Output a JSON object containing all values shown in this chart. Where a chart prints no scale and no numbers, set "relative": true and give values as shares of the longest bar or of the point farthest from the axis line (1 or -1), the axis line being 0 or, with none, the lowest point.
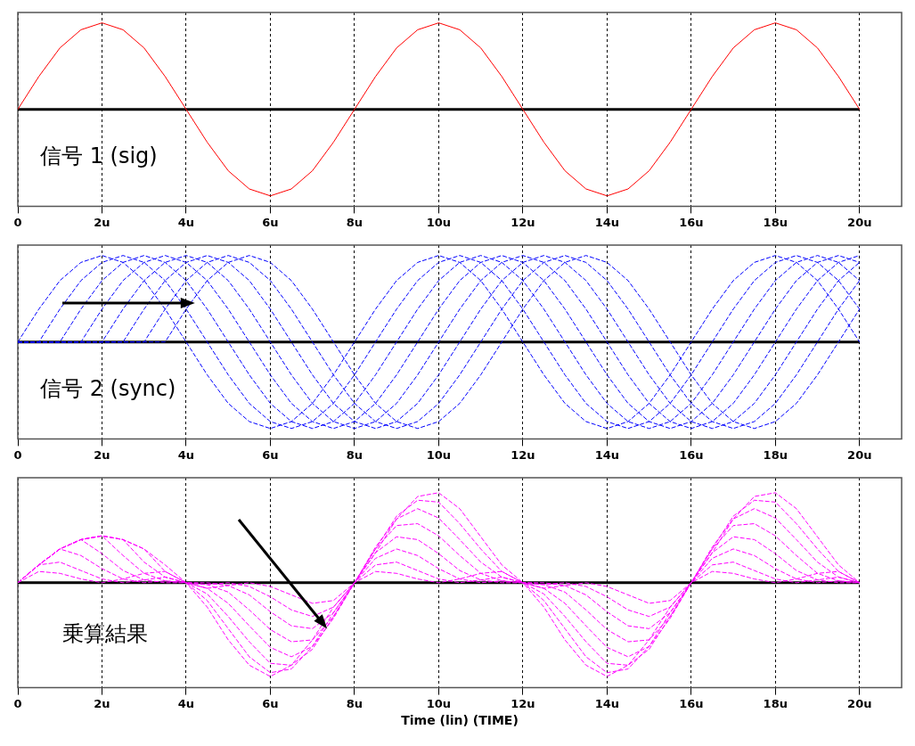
{
  "chart_data": [
    {
      "type": "line",
      "relative": true,
      "grid": "x",
      "legend": false,
      "marker": "none",
      "line_style": "solid",
      "x": [
        0,
        0.5,
        1,
        1.5,
        2,
        2.5,
        3,
        3.5,
        4,
        4.5,
        5,
        5.5,
        6,
        6.5,
        7,
        7.5,
        8,
        8.5,
        9,
        9.5,
        10,
        10.5,
        11,
        11.5,
        12,
        12.5,
        13,
        13.5,
        14,
        14.5,
        15,
        15.5,
        16,
        16.5,
        17,
        17.5,
        18,
        18.5,
        19,
        19.5,
        20
      ],
      "xlim": [
        0,
        21
      ],
      "xticks": [
        {
          "value": 0,
          "label": "0"
        },
        {
          "value": 2,
          "label": "2u"
        },
        {
          "value": 4,
          "label": "4u"
        },
        {
          "value": 6,
          "label": "6u"
        },
        {
          "value": 8,
          "label": "8u"
        },
        {
          "value": 10,
          "label": "10u"
        },
        {
          "value": 12,
          "label": "12u"
        },
        {
          "value": 14,
          "label": "14u"
        },
        {
          "value": 16,
          "label": "16u"
        },
        {
          "value": 18,
          "label": "18u"
        },
        {
          "value": 20,
          "label": "20u"
        }
      ],
      "annotations": [
        "信号 1 (sig)"
      ],
      "series": [
        {
          "color": "#ff0000",
          "values": [
            0,
            0.38,
            0.71,
            0.92,
            1,
            0.92,
            0.71,
            0.38,
            0,
            -0.38,
            -0.71,
            -0.92,
            -1,
            -0.92,
            -0.71,
            -0.38,
            0,
            0.38,
            0.71,
            0.92,
            1,
            0.92,
            0.71,
            0.38,
            0,
            -0.38,
            -0.71,
            -0.92,
            -1,
            -0.92,
            -0.71,
            -0.38,
            0,
            0.38,
            0.71,
            0.92,
            1,
            0.92,
            0.71,
            0.38,
            0
          ]
        }
      ]
    },
    {
      "type": "line",
      "relative": true,
      "grid": "x",
      "legend": false,
      "marker": "none",
      "line_style": "dashed",
      "x": [
        0,
        0.5,
        1,
        1.5,
        2,
        2.5,
        3,
        3.5,
        4,
        4.5,
        5,
        5.5,
        6,
        6.5,
        7,
        7.5,
        8,
        8.5,
        9,
        9.5,
        10,
        10.5,
        11,
        11.5,
        12,
        12.5,
        13,
        13.5,
        14,
        14.5,
        15,
        15.5,
        16,
        16.5,
        17,
        17.5,
        18,
        18.5,
        19,
        19.5,
        20
      ],
      "xlim": [
        0,
        21
      ],
      "xticks": [
        {
          "value": 0,
          "label": "0"
        },
        {
          "value": 2,
          "label": "2u"
        },
        {
          "value": 4,
          "label": "4u"
        },
        {
          "value": 6,
          "label": "6u"
        },
        {
          "value": 8,
          "label": "8u"
        },
        {
          "value": 10,
          "label": "10u"
        },
        {
          "value": 12,
          "label": "12u"
        },
        {
          "value": 14,
          "label": "14u"
        },
        {
          "value": 16,
          "label": "16u"
        },
        {
          "value": 18,
          "label": "18u"
        },
        {
          "value": 20,
          "label": "20u"
        }
      ],
      "annotations": [
        "信号 2 (sync)"
      ],
      "series": [
        {
          "color": "#0000ff",
          "values": [
            0,
            0.38,
            0.71,
            0.92,
            1,
            0.92,
            0.71,
            0.38,
            0,
            -0.38,
            -0.71,
            -0.92,
            -1,
            -0.92,
            -0.71,
            -0.38,
            0,
            0.38,
            0.71,
            0.92,
            1,
            0.92,
            0.71,
            0.38,
            0,
            -0.38,
            -0.71,
            -0.92,
            -1,
            -0.92,
            -0.71,
            -0.38,
            0,
            0.38,
            0.71,
            0.92,
            1,
            0.92,
            0.71,
            0.38,
            0
          ]
        },
        {
          "color": "#0000ff",
          "values": [
            0,
            0,
            0.38,
            0.71,
            0.92,
            1,
            0.92,
            0.71,
            0.38,
            0,
            -0.38,
            -0.71,
            -0.92,
            -1,
            -0.92,
            -0.71,
            -0.38,
            0,
            0.38,
            0.71,
            0.92,
            1,
            0.92,
            0.71,
            0.38,
            0,
            -0.38,
            -0.71,
            -0.92,
            -1,
            -0.92,
            -0.71,
            -0.38,
            0,
            0.38,
            0.71,
            0.92,
            1,
            0.92,
            0.71,
            0.38
          ]
        },
        {
          "color": "#0000ff",
          "values": [
            0,
            0,
            0,
            0.38,
            0.71,
            0.92,
            1,
            0.92,
            0.71,
            0.38,
            0,
            -0.38,
            -0.71,
            -0.92,
            -1,
            -0.92,
            -0.71,
            -0.38,
            0,
            0.38,
            0.71,
            0.92,
            1,
            0.92,
            0.71,
            0.38,
            0,
            -0.38,
            -0.71,
            -0.92,
            -1,
            -0.92,
            -0.71,
            -0.38,
            0,
            0.38,
            0.71,
            0.92,
            1,
            0.92,
            0.71
          ]
        },
        {
          "color": "#0000ff",
          "values": [
            0,
            0,
            0,
            0,
            0.38,
            0.71,
            0.92,
            1,
            0.92,
            0.71,
            0.38,
            0,
            -0.38,
            -0.71,
            -0.92,
            -1,
            -0.92,
            -0.71,
            -0.38,
            0,
            0.38,
            0.71,
            0.92,
            1,
            0.92,
            0.71,
            0.38,
            0,
            -0.38,
            -0.71,
            -0.92,
            -1,
            -0.92,
            -0.71,
            -0.38,
            0,
            0.38,
            0.71,
            0.92,
            1,
            0.92
          ]
        },
        {
          "color": "#0000ff",
          "values": [
            0,
            0,
            0,
            0,
            0,
            0.38,
            0.71,
            0.92,
            1,
            0.92,
            0.71,
            0.38,
            0,
            -0.38,
            -0.71,
            -0.92,
            -1,
            -0.92,
            -0.71,
            -0.38,
            0,
            0.38,
            0.71,
            0.92,
            1,
            0.92,
            0.71,
            0.38,
            0,
            -0.38,
            -0.71,
            -0.92,
            -1,
            -0.92,
            -0.71,
            -0.38,
            0,
            0.38,
            0.71,
            0.92,
            1
          ]
        },
        {
          "color": "#0000ff",
          "values": [
            0,
            0,
            0,
            0,
            0,
            0,
            0.38,
            0.71,
            0.92,
            1,
            0.92,
            0.71,
            0.38,
            0,
            -0.38,
            -0.71,
            -0.92,
            -1,
            -0.92,
            -0.71,
            -0.38,
            0,
            0.38,
            0.71,
            0.92,
            1,
            0.92,
            0.71,
            0.38,
            0,
            -0.38,
            -0.71,
            -0.92,
            -1,
            -0.92,
            -0.71,
            -0.38,
            0,
            0.38,
            0.71,
            0.92
          ]
        },
        {
          "color": "#0000ff",
          "values": [
            0,
            0,
            0,
            0,
            0,
            0,
            0,
            0.38,
            0.71,
            0.92,
            1,
            0.92,
            0.71,
            0.38,
            0,
            -0.38,
            -0.71,
            -0.92,
            -1,
            -0.92,
            -0.71,
            -0.38,
            0,
            0.38,
            0.71,
            0.92,
            1,
            0.92,
            0.71,
            0.38,
            0,
            -0.38,
            -0.71,
            -0.92,
            -1,
            -0.92,
            -0.71,
            -0.38,
            0,
            0.38,
            0.71
          ]
        },
        {
          "color": "#0000ff",
          "values": [
            0,
            0,
            0,
            0,
            0,
            0,
            0,
            0,
            0.38,
            0.71,
            0.92,
            1,
            0.92,
            0.71,
            0.38,
            0,
            -0.38,
            -0.71,
            -0.92,
            -1,
            -0.92,
            -0.71,
            -0.38,
            0,
            0.38,
            0.71,
            0.92,
            1,
            0.92,
            0.71,
            0.38,
            0,
            -0.38,
            -0.71,
            -0.92,
            -1,
            -0.92,
            -0.71,
            -0.38,
            0,
            0.38
          ]
        }
      ]
    },
    {
      "type": "line",
      "relative": true,
      "grid": "x",
      "tick_labels": "x",
      "legend": false,
      "marker": "none",
      "line_style": "dashed",
      "xlabel": "Time (lin) (TIME)",
      "x": [
        0,
        0.5,
        1,
        1.5,
        2,
        2.5,
        3,
        3.5,
        4,
        4.5,
        5,
        5.5,
        6,
        6.5,
        7,
        7.5,
        8,
        8.5,
        9,
        9.5,
        10,
        10.5,
        11,
        11.5,
        12,
        12.5,
        13,
        13.5,
        14,
        14.5,
        15,
        15.5,
        16,
        16.5,
        17,
        17.5,
        18,
        18.5,
        19,
        19.5,
        20
      ],
      "xlim": [
        0,
        21
      ],
      "xticks": [
        {
          "value": 0,
          "label": "0"
        },
        {
          "value": 2,
          "label": "2u"
        },
        {
          "value": 4,
          "label": "4u"
        },
        {
          "value": 6,
          "label": "6u"
        },
        {
          "value": 8,
          "label": "8u"
        },
        {
          "value": 10,
          "label": "10u"
        },
        {
          "value": 12,
          "label": "12u"
        },
        {
          "value": 14,
          "label": "14u"
        },
        {
          "value": 16,
          "label": "16u"
        },
        {
          "value": 18,
          "label": "18u"
        },
        {
          "value": 20,
          "label": "20u"
        }
      ],
      "annotations": [
        "乗算結果"
      ],
      "series": [
        {
          "color": "#ff00ff",
          "values": [
            0,
            0.12,
            0.1,
            0.04,
            0,
            0.04,
            0.1,
            0.12,
            0,
            -0.26,
            -0.61,
            -0.88,
            -1,
            -0.88,
            -0.61,
            -0.26,
            0,
            0.12,
            0.1,
            0.04,
            0,
            0.04,
            0.1,
            0.12,
            0,
            -0.26,
            -0.61,
            -0.88,
            -1,
            -0.88,
            -0.61,
            -0.26,
            0,
            0.12,
            0.1,
            0.04,
            0,
            0.04,
            0.1,
            0.12,
            0
          ]
        },
        {
          "color": "#ff00ff",
          "values": [
            0,
            0.19,
            0.22,
            0.13,
            0.04,
            0,
            0.03,
            0.06,
            0,
            -0.19,
            -0.49,
            -0.79,
            -0.96,
            -0.92,
            -0.68,
            -0.32,
            0,
            0.19,
            0.22,
            0.13,
            0.04,
            0,
            0.03,
            0.06,
            0,
            -0.19,
            -0.49,
            -0.79,
            -0.96,
            -0.92,
            -0.68,
            -0.32,
            0,
            0.19,
            0.22,
            0.13,
            0.04,
            0,
            0.03,
            0.06,
            0
          ]
        },
        {
          "color": "#ff00ff",
          "values": [
            0,
            0.19,
            0.36,
            0.29,
            0.15,
            0.04,
            0,
            0.02,
            0,
            -0.12,
            -0.36,
            -0.63,
            -0.86,
            -0.88,
            -0.71,
            -0.36,
            0,
            0.26,
            0.36,
            0.29,
            0.15,
            0.04,
            0,
            0.02,
            0,
            -0.12,
            -0.36,
            -0.63,
            -0.86,
            -0.88,
            -0.71,
            -0.36,
            0,
            0.26,
            0.36,
            0.29,
            0.15,
            0.04,
            0,
            0.02,
            0
          ]
        },
        {
          "color": "#ff00ff",
          "values": [
            0,
            0.19,
            0.36,
            0.46,
            0.31,
            0.13,
            0.03,
            0,
            0,
            -0.06,
            -0.22,
            -0.46,
            -0.69,
            -0.79,
            -0.68,
            -0.38,
            0,
            0.32,
            0.49,
            0.46,
            0.31,
            0.13,
            0.03,
            0,
            0,
            -0.06,
            -0.22,
            -0.46,
            -0.69,
            -0.79,
            -0.68,
            -0.38,
            0,
            0.32,
            0.49,
            0.46,
            0.31,
            0.13,
            0.03,
            0,
            0
          ]
        },
        {
          "color": "#ff00ff",
          "values": [
            0,
            0.19,
            0.36,
            0.46,
            0.5,
            0.29,
            0.1,
            0.02,
            0,
            -0.02,
            -0.1,
            -0.29,
            -0.5,
            -0.63,
            -0.61,
            -0.36,
            0,
            0.36,
            0.61,
            0.63,
            0.5,
            0.29,
            0.1,
            0.02,
            0,
            -0.02,
            -0.1,
            -0.29,
            -0.5,
            -0.63,
            -0.61,
            -0.36,
            0,
            0.36,
            0.61,
            0.63,
            0.5,
            0.29,
            0.1,
            0.02,
            0
          ]
        },
        {
          "color": "#ff00ff",
          "values": [
            0,
            0.19,
            0.36,
            0.46,
            0.5,
            0.46,
            0.22,
            0.06,
            0,
            0,
            -0.03,
            -0.13,
            -0.31,
            -0.46,
            -0.49,
            -0.32,
            0,
            0.38,
            0.68,
            0.79,
            0.69,
            0.46,
            0.22,
            0.06,
            0,
            0,
            -0.03,
            -0.13,
            -0.31,
            -0.46,
            -0.49,
            -0.32,
            0,
            0.38,
            0.68,
            0.79,
            0.69,
            0.46,
            0.22,
            0.06,
            0
          ]
        },
        {
          "color": "#ff00ff",
          "values": [
            0,
            0.19,
            0.36,
            0.46,
            0.5,
            0.46,
            0.36,
            0.12,
            0,
            -0.02,
            0,
            -0.04,
            -0.15,
            -0.29,
            -0.36,
            -0.26,
            0,
            0.36,
            0.71,
            0.88,
            0.86,
            0.63,
            0.36,
            0.12,
            0,
            -0.02,
            0,
            -0.04,
            -0.15,
            -0.29,
            -0.36,
            -0.26,
            0,
            0.36,
            0.71,
            0.88,
            0.86,
            0.63,
            0.36,
            0.12,
            0
          ]
        },
        {
          "color": "#ff00ff",
          "values": [
            0,
            0.19,
            0.36,
            0.46,
            0.5,
            0.46,
            0.36,
            0.19,
            0,
            -0.06,
            -0.03,
            0,
            -0.04,
            -0.13,
            -0.22,
            -0.19,
            0,
            0.32,
            0.68,
            0.92,
            0.96,
            0.79,
            0.49,
            0.19,
            0,
            -0.06,
            -0.03,
            0,
            -0.04,
            -0.13,
            -0.22,
            -0.19,
            0,
            0.32,
            0.68,
            0.92,
            0.96,
            0.79,
            0.49,
            0.19,
            0
          ]
        }
      ]
    }
  ]
}
